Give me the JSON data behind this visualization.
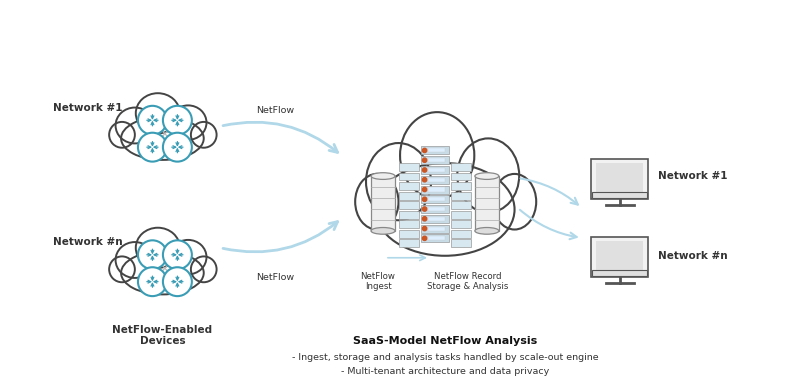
{
  "bg_color": "#ffffff",
  "cloud_edge_color": "#444444",
  "teal_color": "#3a9db5",
  "light_blue_arrow": "#b0d8e8",
  "server_blue": "#c8dce8",
  "server_blue_side": "#d8e8f0",
  "server_orange": "#cc5522",
  "caption_title": "SaaS-Model NetFlow Analysis",
  "caption_line1": "- Ingest, storage and analysis tasks handled by scale-out engine",
  "caption_line2": "- Multi-tenant architecture and data privacy",
  "label_netflow_enabled": "NetFlow-Enabled\nDevices",
  "label_network1_left": "Network #1",
  "label_networkn_left": "Network #n",
  "label_netflow_top": "NetFlow",
  "label_netflow_bot": "NetFlow",
  "label_netflow_ingest": "NetFlow\nIngest",
  "label_netflow_record": "NetFlow Record\nStorage & Analysis",
  "label_network1_right": "Network #1",
  "label_networkn_right": "Network #n",
  "monitor_edge": "#555555",
  "monitor_face": "#f2f2f2",
  "monitor_screen": "#e0e0e0",
  "gray_line": "#bbbbbb"
}
